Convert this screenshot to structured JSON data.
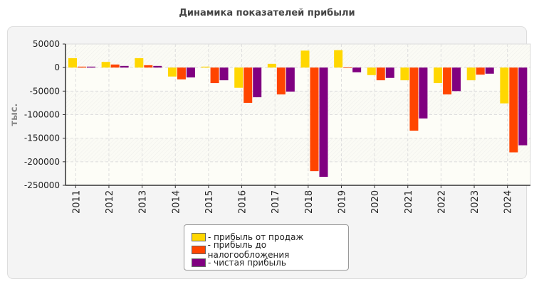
{
  "chart_data": {
    "type": "bar",
    "title": "Динамика показателей прибыли",
    "ylabel": "тыс.",
    "xlabel": "",
    "ylim": [
      -250000,
      50000
    ],
    "yticks": [
      50000,
      0,
      -50000,
      -100000,
      -150000,
      -200000,
      -250000
    ],
    "grid": true,
    "legend_position": "bottom",
    "categories": [
      "2011",
      "2012",
      "2013",
      "2014",
      "2015",
      "2016",
      "2017",
      "2018",
      "2019",
      "2020",
      "2021",
      "2022",
      "2023",
      "2024"
    ],
    "series": [
      {
        "name": "- прибыль от продаж",
        "color": "#ffd700",
        "values": [
          20000,
          12000,
          20000,
          -19000,
          2000,
          -43000,
          8000,
          36000,
          37000,
          -16000,
          -27000,
          -33000,
          -27000,
          -76000
        ]
      },
      {
        "name": "- прибыль до налогообложения",
        "color": "#ff4500",
        "values": [
          2000,
          6500,
          5000,
          -25000,
          -33000,
          -75000,
          -57000,
          -220000,
          -1000,
          -27000,
          -134000,
          -57000,
          -15000,
          -180000
        ]
      },
      {
        "name": "- чистая прибыль",
        "color": "#800080",
        "values": [
          2000,
          3500,
          3500,
          -21000,
          -27000,
          -63000,
          -51000,
          -232000,
          -10000,
          -22000,
          -108000,
          -50000,
          -13000,
          -165000
        ]
      }
    ]
  }
}
